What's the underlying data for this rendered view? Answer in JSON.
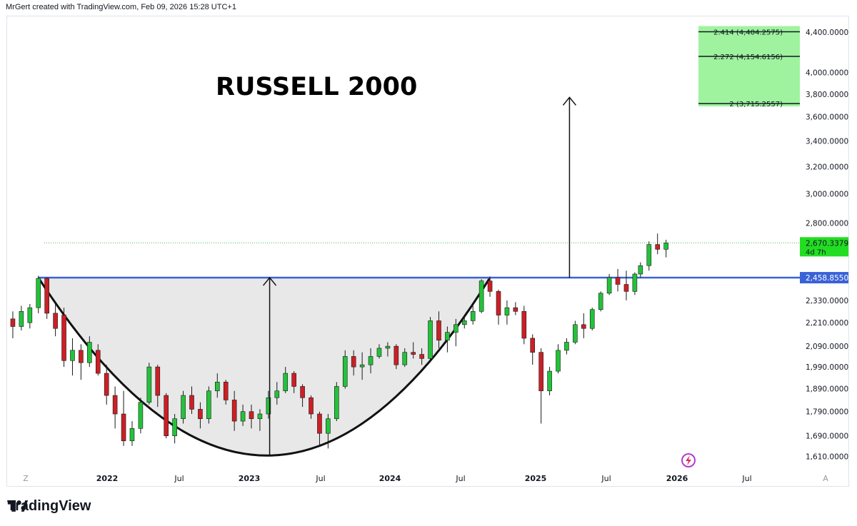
{
  "header": {
    "text": "MrGert created with TradingView.com, Feb 09, 2026 15:28 UTC+1"
  },
  "brand": {
    "name": "TradingView",
    "logo_icon": "tradingview-logo-icon"
  },
  "colors": {
    "up": "#22c33a",
    "down": "#cc1f26",
    "level_line": "#3a62d7",
    "target_zone": "#9ff39f",
    "cup_fill": "#e8e8e8",
    "price_label": "#22dd22"
  },
  "chart_data": {
    "type": "candlestick",
    "title": "RUSSELL 2000",
    "x_ticks": [
      "Z",
      "2022",
      "Jul",
      "2023",
      "Jul",
      "2024",
      "Jul",
      "2025",
      "Jul",
      "2026",
      "Jul",
      "A"
    ],
    "x_ticks_bold": [
      false,
      true,
      false,
      true,
      false,
      true,
      false,
      true,
      false,
      true,
      false,
      false
    ],
    "y_ticks": [
      "4,400.0000",
      "4,000.0000",
      "3,800.0000",
      "3,600.0000",
      "3,400.0000",
      "3,200.0000",
      "3,000.0000",
      "2,800.0000",
      "2,330.0000",
      "2,210.0000",
      "2,090.0000",
      "1,990.0000",
      "1,890.0000",
      "1,790.0000",
      "1,690.0000",
      "1,610.0000"
    ],
    "y_tick_values": [
      4400,
      4000,
      3800,
      3600,
      3400,
      3200,
      3000,
      2800,
      2330,
      2210,
      2090,
      1990,
      1890,
      1790,
      1690,
      1610
    ],
    "scale": "log",
    "ylim": [
      1560,
      4560
    ],
    "xlim": [
      "2021-08-23",
      "2026-12-20"
    ],
    "current_price": {
      "value": 2670.3379,
      "label": "2,670.3379",
      "timer": "4d 7h"
    },
    "resistance": {
      "value": 2458.855,
      "label": "2,458.8550",
      "from": "2021-11-08",
      "to": "2026-12-20"
    },
    "fib_targets": [
      {
        "label": "2.414 (4,404.2575)",
        "value": 4404.2575
      },
      {
        "label": "2.272 (4,154.6156)",
        "value": 4154.6156
      },
      {
        "label": "2 (3,715.2557)",
        "value": 3715.2557
      }
    ],
    "cup": {
      "start": "2021-11-08",
      "bottom_date": "2023-06-01",
      "bottom_value": 1613,
      "end": "2024-11-25",
      "rim_value": 2458.855
    },
    "measured_move": [
      {
        "date": "2023-06-01",
        "from": 1613,
        "to": 2458.855
      },
      {
        "date": "2025-06-09",
        "from": 2458.855,
        "to": 3770
      }
    ],
    "candles": [
      {
        "d": "2021-09-06",
        "o": 2230,
        "h": 2270,
        "l": 2130,
        "c": 2190
      },
      {
        "d": "2021-09-27",
        "o": 2190,
        "h": 2300,
        "l": 2170,
        "c": 2270
      },
      {
        "d": "2021-10-18",
        "o": 2210,
        "h": 2310,
        "l": 2180,
        "c": 2290
      },
      {
        "d": "2021-11-08",
        "o": 2290,
        "h": 2470,
        "l": 2260,
        "c": 2455
      },
      {
        "d": "2021-11-29",
        "o": 2455,
        "h": 2460,
        "l": 2230,
        "c": 2260
      },
      {
        "d": "2021-12-20",
        "o": 2260,
        "h": 2310,
        "l": 2140,
        "c": 2180
      },
      {
        "d": "2022-01-10",
        "o": 2250,
        "h": 2290,
        "l": 1990,
        "c": 2020
      },
      {
        "d": "2022-01-31",
        "o": 2020,
        "h": 2130,
        "l": 1950,
        "c": 2070
      },
      {
        "d": "2022-02-21",
        "o": 2070,
        "h": 2100,
        "l": 1930,
        "c": 2010
      },
      {
        "d": "2022-03-14",
        "o": 2010,
        "h": 2140,
        "l": 1990,
        "c": 2110
      },
      {
        "d": "2022-04-04",
        "o": 2070,
        "h": 2100,
        "l": 1950,
        "c": 1960
      },
      {
        "d": "2022-04-25",
        "o": 1960,
        "h": 2000,
        "l": 1820,
        "c": 1860
      },
      {
        "d": "2022-05-16",
        "o": 1860,
        "h": 1900,
        "l": 1720,
        "c": 1780
      },
      {
        "d": "2022-06-06",
        "o": 1780,
        "h": 1880,
        "l": 1650,
        "c": 1670
      },
      {
        "d": "2022-06-27",
        "o": 1670,
        "h": 1750,
        "l": 1650,
        "c": 1720
      },
      {
        "d": "2022-07-18",
        "o": 1720,
        "h": 1850,
        "l": 1700,
        "c": 1830
      },
      {
        "d": "2022-08-08",
        "o": 1830,
        "h": 2010,
        "l": 1820,
        "c": 1990
      },
      {
        "d": "2022-08-29",
        "o": 1990,
        "h": 2000,
        "l": 1810,
        "c": 1860
      },
      {
        "d": "2022-09-19",
        "o": 1860,
        "h": 1870,
        "l": 1680,
        "c": 1690
      },
      {
        "d": "2022-10-10",
        "o": 1690,
        "h": 1780,
        "l": 1660,
        "c": 1760
      },
      {
        "d": "2022-10-31",
        "o": 1760,
        "h": 1880,
        "l": 1740,
        "c": 1860
      },
      {
        "d": "2022-11-21",
        "o": 1860,
        "h": 1900,
        "l": 1780,
        "c": 1800
      },
      {
        "d": "2022-12-12",
        "o": 1800,
        "h": 1830,
        "l": 1720,
        "c": 1760
      },
      {
        "d": "2023-01-02",
        "o": 1760,
        "h": 1900,
        "l": 1740,
        "c": 1880
      },
      {
        "d": "2023-01-23",
        "o": 1880,
        "h": 1960,
        "l": 1850,
        "c": 1920
      },
      {
        "d": "2023-02-13",
        "o": 1920,
        "h": 1930,
        "l": 1820,
        "c": 1840
      },
      {
        "d": "2023-03-06",
        "o": 1840,
        "h": 1880,
        "l": 1710,
        "c": 1750
      },
      {
        "d": "2023-03-27",
        "o": 1750,
        "h": 1820,
        "l": 1730,
        "c": 1790
      },
      {
        "d": "2023-04-17",
        "o": 1790,
        "h": 1820,
        "l": 1720,
        "c": 1760
      },
      {
        "d": "2023-05-08",
        "o": 1760,
        "h": 1800,
        "l": 1710,
        "c": 1780
      },
      {
        "d": "2023-05-29",
        "o": 1780,
        "h": 1880,
        "l": 1760,
        "c": 1850
      },
      {
        "d": "2023-06-19",
        "o": 1850,
        "h": 1920,
        "l": 1820,
        "c": 1880
      },
      {
        "d": "2023-07-10",
        "o": 1880,
        "h": 1990,
        "l": 1870,
        "c": 1960
      },
      {
        "d": "2023-07-31",
        "o": 1960,
        "h": 1970,
        "l": 1870,
        "c": 1900
      },
      {
        "d": "2023-08-21",
        "o": 1900,
        "h": 1910,
        "l": 1810,
        "c": 1850
      },
      {
        "d": "2023-09-11",
        "o": 1850,
        "h": 1860,
        "l": 1760,
        "c": 1780
      },
      {
        "d": "2023-10-02",
        "o": 1780,
        "h": 1790,
        "l": 1650,
        "c": 1700
      },
      {
        "d": "2023-10-23",
        "o": 1700,
        "h": 1780,
        "l": 1640,
        "c": 1760
      },
      {
        "d": "2023-11-13",
        "o": 1760,
        "h": 1920,
        "l": 1750,
        "c": 1900
      },
      {
        "d": "2023-12-04",
        "o": 1900,
        "h": 2070,
        "l": 1890,
        "c": 2040
      },
      {
        "d": "2023-12-25",
        "o": 2040,
        "h": 2070,
        "l": 1950,
        "c": 1990
      },
      {
        "d": "2024-01-15",
        "o": 1990,
        "h": 2060,
        "l": 1930,
        "c": 2000
      },
      {
        "d": "2024-02-05",
        "o": 2000,
        "h": 2080,
        "l": 1960,
        "c": 2040
      },
      {
        "d": "2024-02-26",
        "o": 2040,
        "h": 2100,
        "l": 2030,
        "c": 2080
      },
      {
        "d": "2024-03-18",
        "o": 2080,
        "h": 2110,
        "l": 2040,
        "c": 2090
      },
      {
        "d": "2024-04-08",
        "o": 2090,
        "h": 2100,
        "l": 1980,
        "c": 2000
      },
      {
        "d": "2024-04-29",
        "o": 2000,
        "h": 2080,
        "l": 1990,
        "c": 2060
      },
      {
        "d": "2024-05-20",
        "o": 2060,
        "h": 2110,
        "l": 2030,
        "c": 2050
      },
      {
        "d": "2024-06-10",
        "o": 2050,
        "h": 2080,
        "l": 2000,
        "c": 2030
      },
      {
        "d": "2024-07-01",
        "o": 2030,
        "h": 2240,
        "l": 2020,
        "c": 2220
      },
      {
        "d": "2024-07-22",
        "o": 2220,
        "h": 2270,
        "l": 2080,
        "c": 2120
      },
      {
        "d": "2024-08-12",
        "o": 2120,
        "h": 2190,
        "l": 2060,
        "c": 2160
      },
      {
        "d": "2024-09-02",
        "o": 2160,
        "h": 2230,
        "l": 2090,
        "c": 2200
      },
      {
        "d": "2024-09-23",
        "o": 2200,
        "h": 2240,
        "l": 2180,
        "c": 2220
      },
      {
        "d": "2024-10-14",
        "o": 2220,
        "h": 2300,
        "l": 2200,
        "c": 2270
      },
      {
        "d": "2024-11-04",
        "o": 2270,
        "h": 2450,
        "l": 2260,
        "c": 2440
      },
      {
        "d": "2024-11-25",
        "o": 2440,
        "h": 2466,
        "l": 2350,
        "c": 2380
      },
      {
        "d": "2024-12-16",
        "o": 2380,
        "h": 2390,
        "l": 2200,
        "c": 2250
      },
      {
        "d": "2025-01-06",
        "o": 2250,
        "h": 2330,
        "l": 2200,
        "c": 2290
      },
      {
        "d": "2025-01-27",
        "o": 2290,
        "h": 2320,
        "l": 2250,
        "c": 2270
      },
      {
        "d": "2025-02-17",
        "o": 2270,
        "h": 2300,
        "l": 2100,
        "c": 2130
      },
      {
        "d": "2025-03-10",
        "o": 2130,
        "h": 2150,
        "l": 2000,
        "c": 2060
      },
      {
        "d": "2025-03-31",
        "o": 2060,
        "h": 2080,
        "l": 1740,
        "c": 1880
      },
      {
        "d": "2025-04-21",
        "o": 1880,
        "h": 1990,
        "l": 1860,
        "c": 1970
      },
      {
        "d": "2025-05-12",
        "o": 1970,
        "h": 2100,
        "l": 1960,
        "c": 2070
      },
      {
        "d": "2025-06-02",
        "o": 2070,
        "h": 2130,
        "l": 2050,
        "c": 2110
      },
      {
        "d": "2025-06-23",
        "o": 2110,
        "h": 2220,
        "l": 2100,
        "c": 2200
      },
      {
        "d": "2025-07-14",
        "o": 2200,
        "h": 2260,
        "l": 2130,
        "c": 2180
      },
      {
        "d": "2025-08-04",
        "o": 2180,
        "h": 2290,
        "l": 2170,
        "c": 2280
      },
      {
        "d": "2025-08-25",
        "o": 2280,
        "h": 2380,
        "l": 2270,
        "c": 2370
      },
      {
        "d": "2025-09-15",
        "o": 2370,
        "h": 2480,
        "l": 2360,
        "c": 2460
      },
      {
        "d": "2025-10-06",
        "o": 2460,
        "h": 2510,
        "l": 2380,
        "c": 2420
      },
      {
        "d": "2025-10-27",
        "o": 2420,
        "h": 2500,
        "l": 2330,
        "c": 2380
      },
      {
        "d": "2025-11-17",
        "o": 2380,
        "h": 2490,
        "l": 2360,
        "c": 2480
      },
      {
        "d": "2025-12-01",
        "o": 2480,
        "h": 2550,
        "l": 2460,
        "c": 2530
      },
      {
        "d": "2025-12-22",
        "o": 2530,
        "h": 2680,
        "l": 2500,
        "c": 2660
      },
      {
        "d": "2026-01-12",
        "o": 2660,
        "h": 2730,
        "l": 2600,
        "c": 2630
      },
      {
        "d": "2026-02-02",
        "o": 2630,
        "h": 2690,
        "l": 2580,
        "c": 2670
      }
    ]
  }
}
